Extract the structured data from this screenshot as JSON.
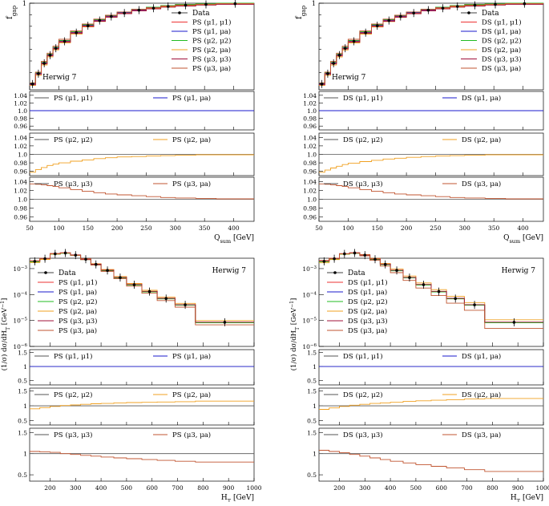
{
  "colors": {
    "data": "#000000",
    "mu11": "#ee3333",
    "mu1a": "#1a1acc",
    "mu22": "#22bb22",
    "mu2a": "#f0a020",
    "mu33": "#a0103a",
    "mu3a": "#c05530",
    "ratio_ref": "#555555"
  },
  "chart_data": [
    {
      "type": "step-hist",
      "panel": "top-left",
      "generator": "Herwig 7",
      "prefix": "PS",
      "ylabel": "f_gap",
      "xlabel": "Q_sum [GeV]",
      "xlim": [
        50,
        435
      ],
      "ylim": [
        0.25,
        1.0
      ],
      "ytick_labels": [
        "1"
      ],
      "xticks": [
        50,
        100,
        150,
        200,
        250,
        300,
        350,
        400
      ],
      "bins": [
        50,
        60,
        70,
        80,
        90,
        100,
        120,
        140,
        160,
        180,
        200,
        225,
        250,
        275,
        300,
        335,
        370,
        435
      ],
      "data": [
        0.3,
        0.39,
        0.48,
        0.55,
        0.61,
        0.67,
        0.745,
        0.805,
        0.85,
        0.885,
        0.915,
        0.94,
        0.957,
        0.972,
        0.982,
        0.99,
        0.996
      ],
      "ratio_mu1a": [
        1.0,
        1.0,
        1.0,
        1.0,
        1.0,
        1.0,
        1.0,
        1.0,
        1.0,
        1.0,
        1.0,
        1.0,
        1.0,
        1.0,
        1.0,
        1.0,
        1.0
      ],
      "ratio_mu2a": [
        0.958,
        0.964,
        0.969,
        0.974,
        0.977,
        0.98,
        0.984,
        0.987,
        0.99,
        0.992,
        0.994,
        0.995,
        0.996,
        0.997,
        0.998,
        0.999,
        0.999
      ],
      "ratio_mu3a": [
        1.035,
        1.034,
        1.033,
        1.031,
        1.029,
        1.026,
        1.022,
        1.018,
        1.015,
        1.012,
        1.01,
        1.008,
        1.006,
        1.004,
        1.003,
        1.002,
        1.001
      ],
      "ratio_ylim": [
        0.95,
        1.05
      ],
      "ratio_ticks": [
        "1.04",
        "1.02",
        "1.0",
        "0.98",
        "0.96"
      ]
    },
    {
      "type": "step-hist",
      "panel": "top-right",
      "generator": "Herwig 7",
      "prefix": "DS",
      "ylabel": "f_gap",
      "xlabel": "Q_sum [GeV]",
      "xlim": [
        50,
        435
      ],
      "ylim": [
        0.25,
        1.0
      ],
      "ytick_labels": [
        "1"
      ],
      "xticks": [
        50,
        100,
        150,
        200,
        250,
        300,
        350,
        400
      ],
      "bins": [
        50,
        60,
        70,
        80,
        90,
        100,
        120,
        140,
        160,
        180,
        200,
        225,
        250,
        275,
        300,
        335,
        370,
        435
      ],
      "data": [
        0.3,
        0.39,
        0.48,
        0.55,
        0.61,
        0.67,
        0.745,
        0.805,
        0.85,
        0.885,
        0.915,
        0.94,
        0.957,
        0.972,
        0.982,
        0.99,
        0.996
      ],
      "ratio_mu1a": [
        1.0,
        1.0,
        1.0,
        1.0,
        1.0,
        1.0,
        1.0,
        1.0,
        1.0,
        1.0,
        1.0,
        1.0,
        1.0,
        1.0,
        1.0,
        1.0,
        1.0
      ],
      "ratio_mu2a": [
        0.958,
        0.963,
        0.968,
        0.972,
        0.976,
        0.979,
        0.983,
        0.986,
        0.989,
        0.991,
        0.993,
        0.995,
        0.996,
        0.997,
        0.998,
        0.999,
        0.999
      ],
      "ratio_mu3a": [
        1.035,
        1.034,
        1.033,
        1.031,
        1.029,
        1.026,
        1.022,
        1.018,
        1.015,
        1.012,
        1.01,
        1.008,
        1.006,
        1.004,
        1.003,
        1.002,
        1.001
      ],
      "ratio_ylim": [
        0.95,
        1.05
      ],
      "ratio_ticks": [
        "1.04",
        "1.02",
        "1.0",
        "0.98",
        "0.96"
      ]
    },
    {
      "type": "step-hist-log",
      "panel": "bottom-left",
      "generator": "Herwig 7",
      "prefix": "PS",
      "ylabel": "(1/σ) dσ/dH_T [GeV^-1]",
      "xlabel": "H_T [GeV]",
      "xlim": [
        120,
        1000
      ],
      "ylog": [
        -6,
        -2.6
      ],
      "ytick_labels": [
        "10^-3",
        "10^-4",
        "10^-5",
        "10^-6"
      ],
      "xticks": [
        200,
        300,
        400,
        500,
        600,
        700,
        800,
        900,
        1000
      ],
      "bins": [
        120,
        160,
        200,
        240,
        280,
        320,
        360,
        400,
        450,
        500,
        560,
        620,
        690,
        770,
        1000
      ],
      "data": [
        0.0019,
        0.0024,
        0.0037,
        0.004,
        0.0033,
        0.0023,
        0.00145,
        0.00085,
        0.00045,
        0.00024,
        0.00013,
        7e-05,
        4e-05,
        8.5e-06
      ],
      "ratio_mu1a": [
        1.0,
        1.0,
        1.0,
        1.0,
        1.0,
        1.0,
        1.0,
        1.0,
        1.0,
        1.0,
        1.0,
        1.0,
        1.0,
        1.0
      ],
      "ratio_mu2a": [
        0.9,
        0.94,
        0.98,
        1.01,
        1.03,
        1.05,
        1.07,
        1.08,
        1.1,
        1.11,
        1.12,
        1.13,
        1.14,
        1.16
      ],
      "ratio_mu3a": [
        1.05,
        1.04,
        1.03,
        1.0,
        0.98,
        0.96,
        0.94,
        0.92,
        0.9,
        0.88,
        0.86,
        0.84,
        0.82,
        0.8
      ],
      "ratio_ylim": [
        0.35,
        1.6
      ],
      "ratio_ticks": [
        "1.5",
        "1",
        "0.5"
      ]
    },
    {
      "type": "step-hist-log",
      "panel": "bottom-right",
      "generator": "Herwig 7",
      "prefix": "DS",
      "ylabel": "(1/σ) dσ/dH_T [GeV^-1]",
      "xlabel": "H_T [GeV]",
      "xlim": [
        120,
        1000
      ],
      "ylog": [
        -6,
        -2.6
      ],
      "ytick_labels": [
        "10^-3",
        "10^-4",
        "10^-5",
        "10^-6"
      ],
      "xticks": [
        200,
        300,
        400,
        500,
        600,
        700,
        800,
        900,
        1000
      ],
      "bins": [
        120,
        160,
        200,
        240,
        280,
        320,
        360,
        400,
        450,
        500,
        560,
        620,
        690,
        770,
        1000
      ],
      "data": [
        0.0019,
        0.0024,
        0.0037,
        0.004,
        0.0033,
        0.0023,
        0.00145,
        0.00085,
        0.00045,
        0.00024,
        0.00013,
        7e-05,
        4e-05,
        8.5e-06
      ],
      "ratio_mu1a": [
        1.0,
        1.0,
        1.0,
        1.0,
        1.0,
        1.0,
        1.0,
        1.0,
        1.0,
        1.0,
        1.0,
        1.0,
        1.0,
        1.0
      ],
      "ratio_mu2a": [
        0.88,
        0.93,
        0.98,
        1.02,
        1.05,
        1.08,
        1.1,
        1.12,
        1.15,
        1.17,
        1.19,
        1.21,
        1.23,
        1.25
      ],
      "ratio_mu3a": [
        1.08,
        1.05,
        1.02,
        0.98,
        0.94,
        0.9,
        0.86,
        0.82,
        0.78,
        0.74,
        0.7,
        0.66,
        0.62,
        0.58
      ],
      "ratio_ylim": [
        0.35,
        1.6
      ],
      "ratio_ticks": [
        "1.5",
        "1",
        "0.5"
      ]
    }
  ],
  "legend": {
    "data_label": "Data",
    "scale_labels": [
      "(μ1, μ1)",
      "(μ1, μa)",
      "(μ2, μ2)",
      "(μ2, μa)",
      "(μ3, μ3)",
      "(μ3, μa)"
    ],
    "ratio_pairs": [
      [
        "(μ1, μ1)",
        "(μ1, μa)"
      ],
      [
        "(μ2, μ2)",
        "(μ2, μa)"
      ],
      [
        "(μ3, μ3)",
        "(μ3, μa)"
      ]
    ]
  },
  "text": {
    "tl_generator": "Herwig 7",
    "tr_generator": "Herwig 7",
    "bl_generator": "Herwig 7",
    "br_generator": "Herwig 7",
    "ylabel_fgap": "f",
    "ylabel_fgap_sub": "gap",
    "xlabel_q": "Q",
    "xlabel_q_sub": "sum",
    "xlabel_q_unit": " [GeV]",
    "xlabel_h": "H",
    "xlabel_h_sub": "T",
    "xlabel_h_unit": " [GeV]",
    "ylabel_ht": "(1/σ) dσ/dH",
    "ylabel_ht_sub": "T",
    "ylabel_ht_unit": " [GeV",
    "ylabel_ht_exp": "−1",
    "ylabel_ht_close": "]",
    "ytick_one": "1",
    "log_base": "10",
    "log_exps": [
      "−3",
      "−4",
      "−5",
      "−6"
    ],
    "ps": "PS",
    "ds": "DS",
    "tick_q": [
      "50",
      "100",
      "150",
      "200",
      "250",
      "300",
      "350",
      "400"
    ],
    "tick_h": [
      "200",
      "300",
      "400",
      "500",
      "600",
      "700",
      "800",
      "900",
      "1000"
    ],
    "ratio_ticks_top": [
      "1.04",
      "1.02",
      "1.0",
      "0.98",
      "0.96"
    ],
    "ratio_ticks_bottom": [
      "1.5",
      "1",
      "0.5"
    ]
  }
}
